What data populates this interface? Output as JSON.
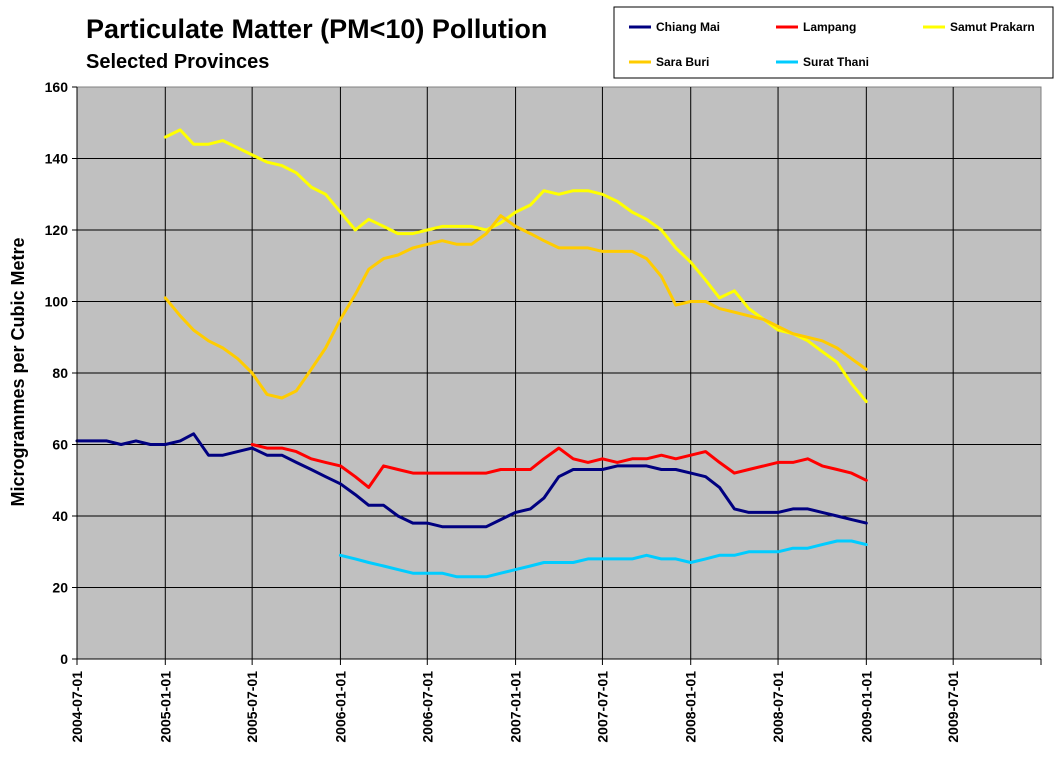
{
  "chart_data": {
    "type": "line",
    "title": "Particulate Matter (PM<10) Pollution",
    "subtitle": "Selected Provinces",
    "xlabel": "",
    "ylabel": "Microgrammes per Cubic Metre",
    "ylim": [
      0,
      160
    ],
    "yticks": [
      "0",
      "20",
      "40",
      "60",
      "80",
      "100",
      "120",
      "140",
      "160"
    ],
    "xlim": [
      "2004-07-01",
      "2009-12-31"
    ],
    "xticks": [
      "2004-07-01",
      "2005-01-01",
      "2005-07-01",
      "2006-01-01",
      "2006-07-01",
      "2007-01-01",
      "2007-07-01",
      "2008-01-01",
      "2008-07-01",
      "2009-01-01",
      "2009-07-01"
    ],
    "grid": true,
    "legend_position": "top-right",
    "series": [
      {
        "name": "Chiang Mai",
        "color": "#000080",
        "points": [
          [
            "2004-07-01",
            61
          ],
          [
            "2004-08-01",
            61
          ],
          [
            "2004-09-01",
            61
          ],
          [
            "2004-10-01",
            60
          ],
          [
            "2004-11-01",
            61
          ],
          [
            "2004-12-01",
            60
          ],
          [
            "2005-01-01",
            60
          ],
          [
            "2005-02-01",
            61
          ],
          [
            "2005-03-01",
            63
          ],
          [
            "2005-04-01",
            57
          ],
          [
            "2005-05-01",
            57
          ],
          [
            "2005-06-01",
            58
          ],
          [
            "2005-07-01",
            59
          ],
          [
            "2005-08-01",
            57
          ],
          [
            "2005-09-01",
            57
          ],
          [
            "2005-10-01",
            55
          ],
          [
            "2005-11-01",
            53
          ],
          [
            "2005-12-01",
            51
          ],
          [
            "2006-01-01",
            49
          ],
          [
            "2006-02-01",
            46
          ],
          [
            "2006-03-01",
            43
          ],
          [
            "2006-04-01",
            43
          ],
          [
            "2006-05-01",
            40
          ],
          [
            "2006-06-01",
            38
          ],
          [
            "2006-07-01",
            38
          ],
          [
            "2006-08-01",
            37
          ],
          [
            "2006-09-01",
            37
          ],
          [
            "2006-10-01",
            37
          ],
          [
            "2006-11-01",
            37
          ],
          [
            "2006-12-01",
            39
          ],
          [
            "2007-01-01",
            41
          ],
          [
            "2007-02-01",
            42
          ],
          [
            "2007-03-01",
            45
          ],
          [
            "2007-04-01",
            51
          ],
          [
            "2007-05-01",
            53
          ],
          [
            "2007-06-01",
            53
          ],
          [
            "2007-07-01",
            53
          ],
          [
            "2007-08-01",
            54
          ],
          [
            "2007-09-01",
            54
          ],
          [
            "2007-10-01",
            54
          ],
          [
            "2007-11-01",
            53
          ],
          [
            "2007-12-01",
            53
          ],
          [
            "2008-01-01",
            52
          ],
          [
            "2008-02-01",
            51
          ],
          [
            "2008-03-01",
            48
          ],
          [
            "2008-04-01",
            42
          ],
          [
            "2008-05-01",
            41
          ],
          [
            "2008-06-01",
            41
          ],
          [
            "2008-07-01",
            41
          ],
          [
            "2008-08-01",
            42
          ],
          [
            "2008-09-01",
            42
          ],
          [
            "2008-10-01",
            41
          ],
          [
            "2008-11-01",
            40
          ],
          [
            "2008-12-01",
            39
          ],
          [
            "2009-01-01",
            38
          ]
        ]
      },
      {
        "name": "Lampang",
        "color": "#ff0000",
        "points": [
          [
            "2005-07-01",
            60
          ],
          [
            "2005-08-01",
            59
          ],
          [
            "2005-09-01",
            59
          ],
          [
            "2005-10-01",
            58
          ],
          [
            "2005-11-01",
            56
          ],
          [
            "2005-12-01",
            55
          ],
          [
            "2006-01-01",
            54
          ],
          [
            "2006-02-01",
            51
          ],
          [
            "2006-03-01",
            48
          ],
          [
            "2006-04-01",
            54
          ],
          [
            "2006-05-01",
            53
          ],
          [
            "2006-06-01",
            52
          ],
          [
            "2006-07-01",
            52
          ],
          [
            "2006-08-01",
            52
          ],
          [
            "2006-09-01",
            52
          ],
          [
            "2006-10-01",
            52
          ],
          [
            "2006-11-01",
            52
          ],
          [
            "2006-12-01",
            53
          ],
          [
            "2007-01-01",
            53
          ],
          [
            "2007-02-01",
            53
          ],
          [
            "2007-03-01",
            56
          ],
          [
            "2007-04-01",
            59
          ],
          [
            "2007-05-01",
            56
          ],
          [
            "2007-06-01",
            55
          ],
          [
            "2007-07-01",
            56
          ],
          [
            "2007-08-01",
            55
          ],
          [
            "2007-09-01",
            56
          ],
          [
            "2007-10-01",
            56
          ],
          [
            "2007-11-01",
            57
          ],
          [
            "2007-12-01",
            56
          ],
          [
            "2008-01-01",
            57
          ],
          [
            "2008-02-01",
            58
          ],
          [
            "2008-03-01",
            55
          ],
          [
            "2008-04-01",
            52
          ],
          [
            "2008-05-01",
            53
          ],
          [
            "2008-06-01",
            54
          ],
          [
            "2008-07-01",
            55
          ],
          [
            "2008-08-01",
            55
          ],
          [
            "2008-09-01",
            56
          ],
          [
            "2008-10-01",
            54
          ],
          [
            "2008-11-01",
            53
          ],
          [
            "2008-12-01",
            52
          ],
          [
            "2009-01-01",
            50
          ]
        ]
      },
      {
        "name": "Samut Prakarn",
        "color": "#ffff00",
        "points": [
          [
            "2005-01-01",
            146
          ],
          [
            "2005-02-01",
            148
          ],
          [
            "2005-03-01",
            144
          ],
          [
            "2005-04-01",
            144
          ],
          [
            "2005-05-01",
            145
          ],
          [
            "2005-06-01",
            143
          ],
          [
            "2005-07-01",
            141
          ],
          [
            "2005-08-01",
            139
          ],
          [
            "2005-09-01",
            138
          ],
          [
            "2005-10-01",
            136
          ],
          [
            "2005-11-01",
            132
          ],
          [
            "2005-12-01",
            130
          ],
          [
            "2006-01-01",
            125
          ],
          [
            "2006-02-01",
            120
          ],
          [
            "2006-03-01",
            123
          ],
          [
            "2006-04-01",
            121
          ],
          [
            "2006-05-01",
            119
          ],
          [
            "2006-06-01",
            119
          ],
          [
            "2006-07-01",
            120
          ],
          [
            "2006-08-01",
            121
          ],
          [
            "2006-09-01",
            121
          ],
          [
            "2006-10-01",
            121
          ],
          [
            "2006-11-01",
            120
          ],
          [
            "2006-12-01",
            122
          ],
          [
            "2007-01-01",
            125
          ],
          [
            "2007-02-01",
            127
          ],
          [
            "2007-03-01",
            131
          ],
          [
            "2007-04-01",
            130
          ],
          [
            "2007-05-01",
            131
          ],
          [
            "2007-06-01",
            131
          ],
          [
            "2007-07-01",
            130
          ],
          [
            "2007-08-01",
            128
          ],
          [
            "2007-09-01",
            125
          ],
          [
            "2007-10-01",
            123
          ],
          [
            "2007-11-01",
            120
          ],
          [
            "2007-12-01",
            115
          ],
          [
            "2008-01-01",
            111
          ],
          [
            "2008-02-01",
            106
          ],
          [
            "2008-03-01",
            101
          ],
          [
            "2008-04-01",
            103
          ],
          [
            "2008-05-01",
            98
          ],
          [
            "2008-06-01",
            95
          ],
          [
            "2008-07-01",
            92
          ],
          [
            "2008-08-01",
            91
          ],
          [
            "2008-09-01",
            89
          ],
          [
            "2008-10-01",
            86
          ],
          [
            "2008-11-01",
            83
          ],
          [
            "2008-12-01",
            77
          ],
          [
            "2009-01-01",
            72
          ]
        ]
      },
      {
        "name": "Sara Buri",
        "color": "#ffcc00",
        "points": [
          [
            "2005-01-01",
            101
          ],
          [
            "2005-02-01",
            96
          ],
          [
            "2005-03-01",
            92
          ],
          [
            "2005-04-01",
            89
          ],
          [
            "2005-05-01",
            87
          ],
          [
            "2005-06-01",
            84
          ],
          [
            "2005-07-01",
            80
          ],
          [
            "2005-08-01",
            74
          ],
          [
            "2005-09-01",
            73
          ],
          [
            "2005-10-01",
            75
          ],
          [
            "2005-11-01",
            81
          ],
          [
            "2005-12-01",
            87
          ],
          [
            "2006-01-01",
            95
          ],
          [
            "2006-02-01",
            102
          ],
          [
            "2006-03-01",
            109
          ],
          [
            "2006-04-01",
            112
          ],
          [
            "2006-05-01",
            113
          ],
          [
            "2006-06-01",
            115
          ],
          [
            "2006-07-01",
            116
          ],
          [
            "2006-08-01",
            117
          ],
          [
            "2006-09-01",
            116
          ],
          [
            "2006-10-01",
            116
          ],
          [
            "2006-11-01",
            119
          ],
          [
            "2006-12-01",
            124
          ],
          [
            "2007-01-01",
            121
          ],
          [
            "2007-02-01",
            119
          ],
          [
            "2007-03-01",
            117
          ],
          [
            "2007-04-01",
            115
          ],
          [
            "2007-05-01",
            115
          ],
          [
            "2007-06-01",
            115
          ],
          [
            "2007-07-01",
            114
          ],
          [
            "2007-08-01",
            114
          ],
          [
            "2007-09-01",
            114
          ],
          [
            "2007-10-01",
            112
          ],
          [
            "2007-11-01",
            107
          ],
          [
            "2007-12-01",
            99
          ],
          [
            "2008-01-01",
            100
          ],
          [
            "2008-02-01",
            100
          ],
          [
            "2008-03-01",
            98
          ],
          [
            "2008-04-01",
            97
          ],
          [
            "2008-05-01",
            96
          ],
          [
            "2008-06-01",
            95
          ],
          [
            "2008-07-01",
            93
          ],
          [
            "2008-08-01",
            91
          ],
          [
            "2008-09-01",
            90
          ],
          [
            "2008-10-01",
            89
          ],
          [
            "2008-11-01",
            87
          ],
          [
            "2008-12-01",
            84
          ],
          [
            "2009-01-01",
            81
          ]
        ]
      },
      {
        "name": "Surat Thani",
        "color": "#00ccff",
        "points": [
          [
            "2006-01-01",
            29
          ],
          [
            "2006-02-01",
            28
          ],
          [
            "2006-03-01",
            27
          ],
          [
            "2006-04-01",
            26
          ],
          [
            "2006-05-01",
            25
          ],
          [
            "2006-06-01",
            24
          ],
          [
            "2006-07-01",
            24
          ],
          [
            "2006-08-01",
            24
          ],
          [
            "2006-09-01",
            23
          ],
          [
            "2006-10-01",
            23
          ],
          [
            "2006-11-01",
            23
          ],
          [
            "2006-12-01",
            24
          ],
          [
            "2007-01-01",
            25
          ],
          [
            "2007-02-01",
            26
          ],
          [
            "2007-03-01",
            27
          ],
          [
            "2007-04-01",
            27
          ],
          [
            "2007-05-01",
            27
          ],
          [
            "2007-06-01",
            28
          ],
          [
            "2007-07-01",
            28
          ],
          [
            "2007-08-01",
            28
          ],
          [
            "2007-09-01",
            28
          ],
          [
            "2007-10-01",
            29
          ],
          [
            "2007-11-01",
            28
          ],
          [
            "2007-12-01",
            28
          ],
          [
            "2008-01-01",
            27
          ],
          [
            "2008-02-01",
            28
          ],
          [
            "2008-03-01",
            29
          ],
          [
            "2008-04-01",
            29
          ],
          [
            "2008-05-01",
            30
          ],
          [
            "2008-06-01",
            30
          ],
          [
            "2008-07-01",
            30
          ],
          [
            "2008-08-01",
            31
          ],
          [
            "2008-09-01",
            31
          ],
          [
            "2008-10-01",
            32
          ],
          [
            "2008-11-01",
            33
          ],
          [
            "2008-12-01",
            33
          ],
          [
            "2009-01-01",
            32
          ]
        ]
      }
    ]
  }
}
